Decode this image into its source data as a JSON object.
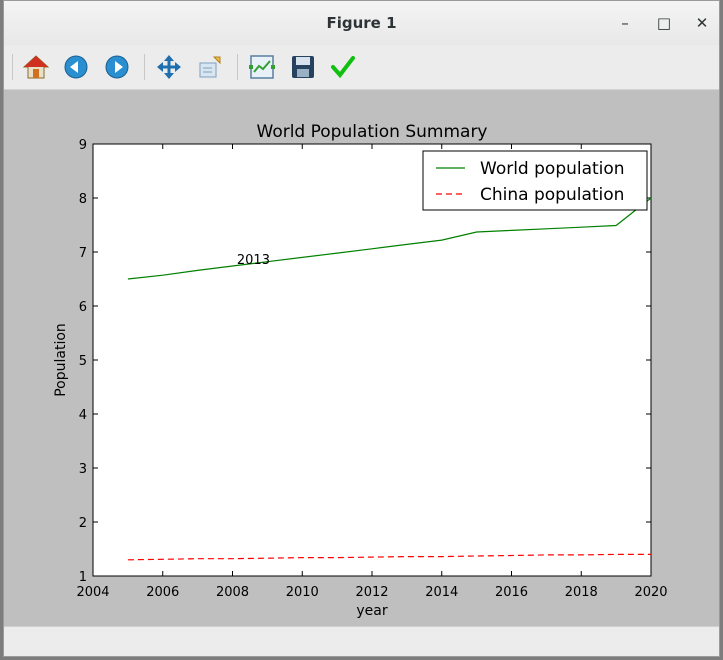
{
  "window": {
    "title": "Figure 1",
    "minimize_glyph": "–",
    "maximize_glyph": "□",
    "close_glyph": "✕"
  },
  "toolbar": {
    "icons": [
      "home-icon",
      "back-icon",
      "forward-icon",
      "pan-icon",
      "zoom-icon",
      "configure-subplots-icon",
      "save-icon",
      "edit-axis-icon"
    ]
  },
  "chart_data": {
    "type": "line",
    "title": "World Population Summary",
    "xlabel": "year",
    "ylabel": "Population",
    "xlim": [
      2004,
      2020
    ],
    "ylim": [
      1,
      9
    ],
    "xticks": [
      2004,
      2006,
      2008,
      2010,
      2012,
      2014,
      2016,
      2018,
      2020
    ],
    "yticks": [
      1,
      2,
      3,
      4,
      5,
      6,
      7,
      8,
      9
    ],
    "grid": false,
    "legend_position": "top-right",
    "series": [
      {
        "name": "World population",
        "color": "#008000",
        "style": "solid",
        "x": [
          2005,
          2006,
          2007,
          2008,
          2009,
          2010,
          2011,
          2012,
          2013,
          2014,
          2015,
          2016,
          2017,
          2018,
          2019,
          2020
        ],
        "y": [
          6.5,
          6.57,
          6.66,
          6.74,
          6.82,
          6.9,
          6.98,
          7.06,
          7.14,
          7.22,
          7.37,
          7.4,
          7.43,
          7.46,
          7.49,
          8.0
        ]
      },
      {
        "name": "China population",
        "color": "#ff0000",
        "style": "dashed",
        "x": [
          2005,
          2006,
          2007,
          2008,
          2009,
          2010,
          2011,
          2012,
          2013,
          2014,
          2015,
          2016,
          2017,
          2018,
          2019,
          2020
        ],
        "y": [
          1.3,
          1.31,
          1.32,
          1.32,
          1.33,
          1.34,
          1.34,
          1.35,
          1.36,
          1.36,
          1.37,
          1.38,
          1.39,
          1.39,
          1.4,
          1.4
        ]
      }
    ],
    "annotations": [
      {
        "text": "2013",
        "x": 2008.6,
        "y": 6.78
      }
    ]
  }
}
